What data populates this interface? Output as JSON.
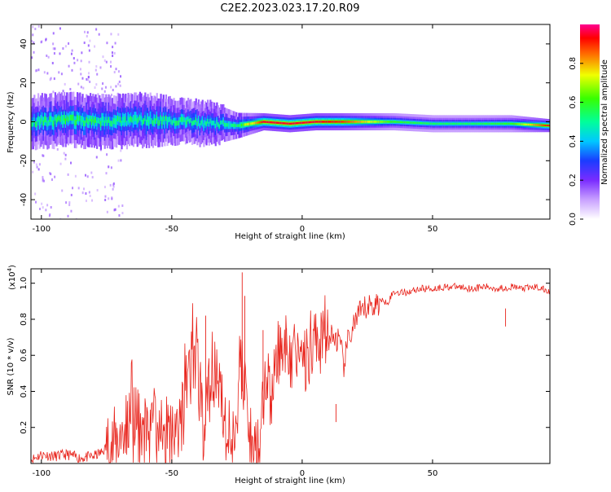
{
  "title": "C2E2.2023.023.17.20.R09",
  "colors": {
    "series_line": "#e8241c",
    "frame": "#000000",
    "spectrum_bg": "#ffffff"
  },
  "chart_data": [
    {
      "type": "heatmap",
      "title": "C2E2.2023.023.17.20.R09",
      "xlabel": "Height of straight line (km)",
      "ylabel": "Frequency (Hz)",
      "xlim": [
        -104,
        95
      ],
      "ylim": [
        -50,
        50
      ],
      "x_ticks": [
        -100,
        -50,
        0,
        50
      ],
      "y_ticks": [
        -40,
        -20,
        0,
        20,
        40
      ],
      "colorbar": {
        "label": "Normalized spectral amplitude",
        "range": [
          0.0,
          1.0
        ],
        "ticks": [
          0.0,
          0.2,
          0.4,
          0.6,
          0.8
        ],
        "colormap": "rainbow (white-violet-blue-cyan-green-yellow-red-magenta)"
      },
      "band_profile": {
        "x": [
          -104,
          -90,
          -75,
          -60,
          -45,
          -35,
          -25,
          -15,
          -5,
          5,
          15,
          25,
          35,
          50,
          65,
          80,
          95
        ],
        "center_freq_hz": [
          0,
          1,
          0,
          1,
          0,
          -1,
          -2,
          0,
          -1,
          0,
          0,
          0,
          0,
          -1,
          -1,
          -1,
          -2
        ],
        "peak_amplitude": [
          0.45,
          0.5,
          0.45,
          0.45,
          0.45,
          0.4,
          0.45,
          0.95,
          0.95,
          0.95,
          0.9,
          0.75,
          0.6,
          0.55,
          0.55,
          0.6,
          0.95
        ],
        "spread_hz": [
          6,
          6,
          6,
          6,
          5,
          5,
          3,
          2,
          2,
          2,
          2,
          2,
          2,
          2,
          2,
          2,
          1.5
        ]
      }
    },
    {
      "type": "line",
      "title": "",
      "xlabel": "Height of straight line (km)",
      "ylabel": "SNR (10 * v/v)",
      "y_multiplier_label": "(x10",
      "y_multiplier_exp": "4",
      "xlim": [
        -104,
        95
      ],
      "ylim": [
        0,
        1.08
      ],
      "x_ticks": [
        -100,
        -50,
        0,
        50
      ],
      "y_ticks": [
        0.2,
        0.4,
        0.6,
        0.8,
        1.0
      ],
      "series": [
        {
          "color": "#e8241c",
          "x": [
            -104,
            -100,
            -95,
            -90,
            -85,
            -80,
            -77,
            -75,
            -72,
            -70,
            -67,
            -65,
            -62,
            -60,
            -57,
            -55,
            -52,
            -50,
            -47,
            -45,
            -43,
            -40,
            -38,
            -36,
            -35,
            -33,
            -30,
            -28,
            -27,
            -25,
            -24,
            -22,
            -20,
            -18,
            -16,
            -15,
            -13,
            -12,
            -10,
            -8,
            -6,
            -5,
            -3,
            -1,
            0,
            2,
            4,
            6,
            8,
            10,
            12,
            14,
            16,
            18,
            20,
            22,
            25,
            28,
            30,
            33,
            35,
            40,
            45,
            50,
            55,
            60,
            65,
            70,
            75,
            80,
            85,
            90,
            95
          ],
          "y": [
            0.02,
            0.05,
            0.04,
            0.05,
            0.03,
            0.04,
            0.06,
            0.09,
            0.1,
            0.16,
            0.2,
            0.22,
            0.18,
            0.2,
            0.15,
            0.2,
            0.14,
            0.1,
            0.22,
            0.32,
            0.55,
            0.5,
            0.2,
            0.42,
            0.35,
            0.55,
            0.2,
            0.15,
            0.12,
            0.3,
            0.55,
            0.45,
            0.1,
            0.07,
            0.2,
            0.35,
            0.4,
            0.35,
            0.5,
            0.6,
            0.7,
            0.55,
            0.6,
            0.55,
            0.6,
            0.6,
            0.72,
            0.65,
            0.75,
            0.7,
            0.7,
            0.68,
            0.55,
            0.7,
            0.78,
            0.82,
            0.87,
            0.88,
            0.9,
            0.9,
            0.95,
            0.95,
            0.97,
            0.97,
            0.98,
            0.98,
            0.97,
            0.98,
            0.97,
            0.98,
            0.97,
            0.98,
            0.95
          ]
        }
      ],
      "spikes": [
        {
          "x": -37,
          "y": 0.82
        },
        {
          "x": -23,
          "y": 1.06
        },
        {
          "x": -22,
          "y": 0.93
        },
        {
          "x": -15,
          "y": 0.74
        },
        {
          "x": -6,
          "y": 0.75
        },
        {
          "x": 13,
          "y": 0.33
        },
        {
          "x": 78,
          "y": 0.86
        },
        {
          "x": 95,
          "y": 0.84
        }
      ]
    }
  ]
}
